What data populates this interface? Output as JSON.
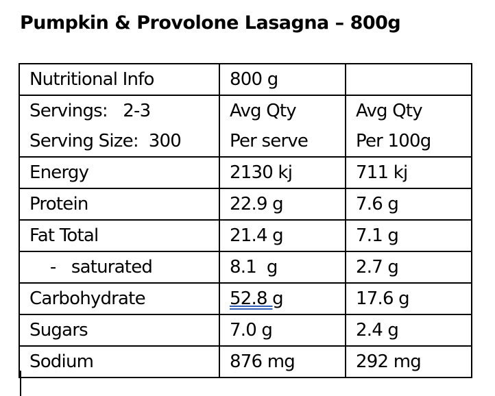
{
  "title": "Pumpkin & Provolone Lasagna – 800g",
  "table": {
    "rows": [
      [
        "Nutritional Info",
        "800 g",
        null
      ],
      [
        [
          "Servings:   2-3",
          "Serving Size:  300"
        ],
        [
          "Avg Qty",
          "Per serve"
        ],
        [
          "Avg Qty",
          "Per 100g"
        ]
      ],
      [
        "Energy",
        "2130 kj",
        "711 kj"
      ],
      [
        "Protein",
        "22.9 g",
        "7.6 g"
      ],
      [
        "Fat Total",
        "21.4 g",
        "7.1 g"
      ],
      [
        "    -   saturated",
        "8.1  g",
        "2.7 g"
      ],
      [
        "Carbohydrate",
        "52.8 g",
        "17.6 g"
      ],
      [
        "Sugars",
        "7.0 g",
        "2.4 g"
      ],
      [
        "Sodium",
        "876 mg",
        "292 mg"
      ]
    ]
  }
}
